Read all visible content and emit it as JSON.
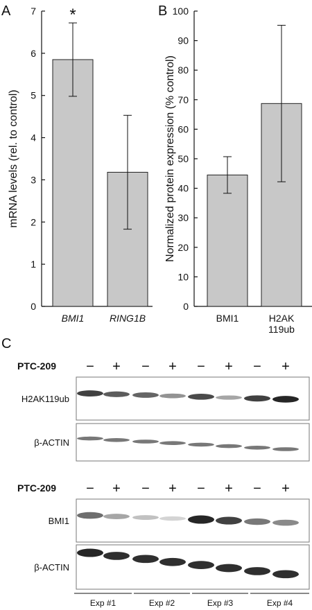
{
  "panel_letters": {
    "a": "A",
    "b": "B",
    "c": "C"
  },
  "chart_data": [
    {
      "type": "bar",
      "panel": "A",
      "categories": [
        "BMI1",
        "RING1B"
      ],
      "values": [
        5.85,
        3.18
      ],
      "error": [
        0.87,
        1.35
      ],
      "significance": [
        "*",
        ""
      ],
      "ylabel": "mRNA levels (rel. to control)",
      "ylim": [
        0,
        7
      ],
      "yticks": [
        0,
        1,
        2,
        3,
        4,
        5,
        6,
        7
      ],
      "bar_color": "#c8c8c8"
    },
    {
      "type": "bar",
      "panel": "B",
      "categories": [
        "BMI1",
        "H2AK|119ub"
      ],
      "values": [
        44.5,
        68.7
      ],
      "error": [
        6.2,
        26.5
      ],
      "ylabel": "Normalized protein expression (% control)",
      "ylim": [
        0,
        100
      ],
      "yticks": [
        0,
        10,
        20,
        30,
        40,
        50,
        60,
        70,
        80,
        90,
        100
      ],
      "bar_color": "#c8c8c8"
    }
  ],
  "blot": {
    "treatment_label": "PTC-209",
    "treatment_signs": [
      "−",
      "+",
      "−",
      "+",
      "−",
      "+",
      "−",
      "+"
    ],
    "top_rows": [
      {
        "label": "H2AK119ub",
        "intensities": [
          0.85,
          0.7,
          0.65,
          0.4,
          0.8,
          0.3,
          0.85,
          1.0
        ]
      },
      {
        "label": "β-ACTIN",
        "intensities": [
          0.55,
          0.55,
          0.55,
          0.55,
          0.55,
          0.55,
          0.55,
          0.55
        ]
      }
    ],
    "bottom_rows": [
      {
        "label": "BMI1",
        "intensities": [
          0.6,
          0.3,
          0.15,
          0.05,
          1.0,
          0.85,
          0.55,
          0.45
        ]
      },
      {
        "label": "β-ACTIN",
        "intensities": [
          1.0,
          0.95,
          0.95,
          0.95,
          0.95,
          0.95,
          0.95,
          0.95
        ]
      }
    ],
    "experiments": [
      "Exp #1",
      "Exp #2",
      "Exp #3",
      "Exp #4"
    ]
  }
}
